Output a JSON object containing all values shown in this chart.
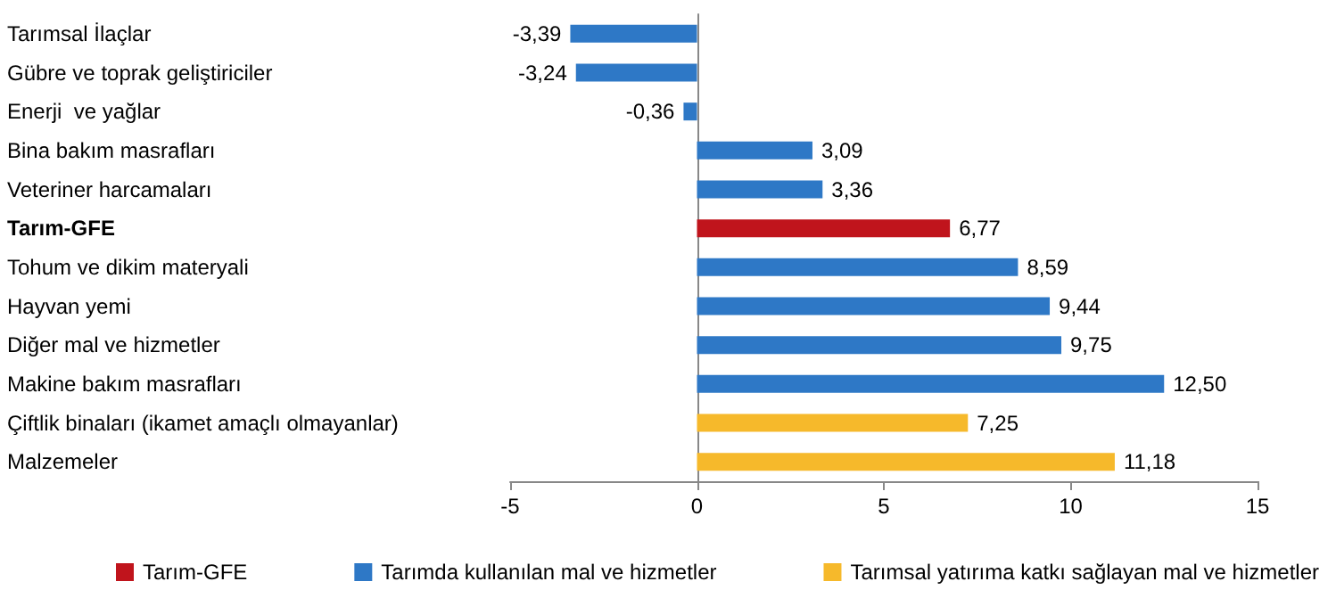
{
  "chart_data": {
    "type": "bar",
    "orientation": "horizontal",
    "legend": "bottom",
    "categories": [
      "Tarımsal İlaçlar",
      "Gübre ve toprak geliştiriciler",
      "Enerji  ve yağlar",
      "Bina bakım masrafları",
      "Veteriner harcamaları",
      "Tarım-GFE",
      "Tohum ve dikim materyali",
      "Hayvan yemi",
      "Diğer mal ve hizmetler",
      "Makine bakım masrafları",
      "Çiftlik binaları (ikamet amaçlı olmayanlar)",
      "Malzemeler"
    ],
    "series": [
      {
        "name": "Tarım-GFE",
        "color": "#c0141c",
        "values": [
          null,
          null,
          null,
          null,
          null,
          6.77,
          null,
          null,
          null,
          null,
          null,
          null
        ],
        "value_labels": [
          null,
          null,
          null,
          null,
          null,
          "6,77",
          null,
          null,
          null,
          null,
          null,
          null
        ]
      },
      {
        "name": "Tarımda kullanılan mal ve hizmetler",
        "color": "#2e78c6",
        "values": [
          -3.39,
          -3.24,
          -0.36,
          3.09,
          3.36,
          null,
          8.59,
          9.44,
          9.75,
          12.5,
          null,
          null
        ],
        "value_labels": [
          "-3,39",
          "-3,24",
          "-0,36",
          "3,09",
          "3,36",
          null,
          "8,59",
          "9,44",
          "9,75",
          "12,50",
          null,
          null
        ]
      },
      {
        "name": "Tarımsal yatırıma katkı sağlayan mal ve hizmetler",
        "color": "#f6b92b",
        "values": [
          null,
          null,
          null,
          null,
          null,
          null,
          null,
          null,
          null,
          null,
          7.25,
          11.18
        ],
        "value_labels": [
          null,
          null,
          null,
          null,
          null,
          null,
          null,
          null,
          null,
          null,
          "7,25",
          "11,18"
        ]
      }
    ],
    "xlim": [
      -5,
      15
    ],
    "xticks": [
      -5,
      0,
      5,
      10,
      15
    ]
  }
}
